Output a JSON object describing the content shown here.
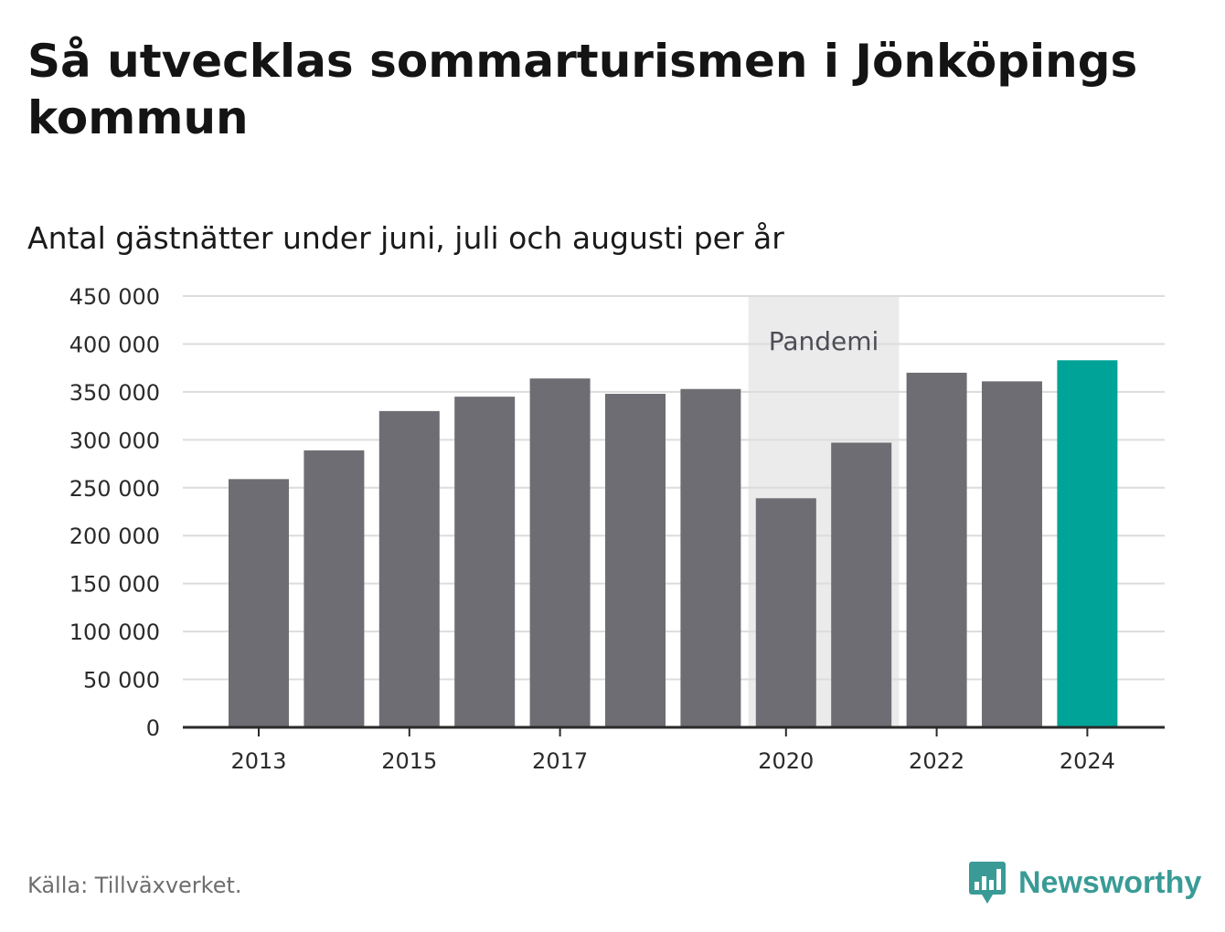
{
  "title": "Så utvecklas sommarturismen i Jönköpings kommun",
  "subtitle": "Antal gästnätter under juni, juli och augusti per år",
  "source": "Källa: Tillväxverket.",
  "brand": {
    "name": "Newsworthy",
    "icon": "bar-chart-speech-bubble-icon",
    "color": "#3a9b96"
  },
  "chart_data": {
    "type": "bar",
    "categories": [
      "2013",
      "2014",
      "2015",
      "2016",
      "2017",
      "2018",
      "2019",
      "2020",
      "2021",
      "2022",
      "2023",
      "2024"
    ],
    "values": [
      259000,
      289000,
      330000,
      345000,
      364000,
      348000,
      353000,
      239000,
      297000,
      370000,
      361000,
      383000
    ],
    "bar_colors": [
      "#6e6d73",
      "#6e6d73",
      "#6e6d73",
      "#6e6d73",
      "#6e6d73",
      "#6e6d73",
      "#6e6d73",
      "#6e6d73",
      "#6e6d73",
      "#6e6d73",
      "#6e6d73",
      "#00a398"
    ],
    "x_tick_labels": [
      "2013",
      "",
      "2015",
      "",
      "2017",
      "",
      "",
      "2020",
      "",
      "2022",
      "",
      "2024"
    ],
    "y_ticks": [
      0,
      50000,
      100000,
      150000,
      200000,
      250000,
      300000,
      350000,
      400000,
      450000
    ],
    "y_tick_labels": [
      "0",
      "50 000",
      "100 000",
      "150 000",
      "200 000",
      "250 000",
      "300 000",
      "350 000",
      "400 000",
      "450 000"
    ],
    "ylim": [
      0,
      450000
    ],
    "xlabel": "",
    "ylabel": "",
    "grid": true,
    "annotation": {
      "label": "Pandemi",
      "from": "2020",
      "to": "2021",
      "color": "#ebebeb"
    }
  }
}
